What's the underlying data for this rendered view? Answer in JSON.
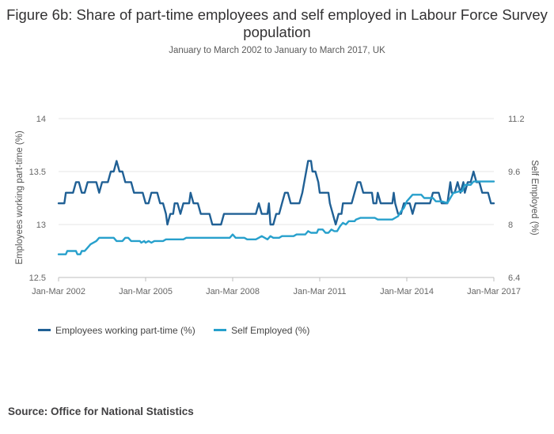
{
  "chart_data": {
    "type": "line",
    "title": "Figure 6b: Share of part-time employees and self employed in Labour Force Survey population",
    "subtitle": "January to March 2002 to January to March 2017, UK",
    "xlabel": "",
    "x_tick_labels": [
      "Jan-Mar 2002",
      "Jan-Mar 2005",
      "Jan-Mar 2008",
      "Jan-Mar 2011",
      "Jan-Mar 2014",
      "Jan-Mar 2017"
    ],
    "x_range": [
      2002.0,
      2017.0
    ],
    "y_left": {
      "label": "Employees working part-time (%)",
      "ticks": [
        "14",
        "13.5",
        "13",
        "12.5"
      ],
      "ylim": [
        12.5,
        14
      ]
    },
    "y_right": {
      "label": "Self Employed (%)",
      "ticks": [
        "11.2",
        "9.6",
        "8",
        "6.4"
      ],
      "ylim": [
        6.4,
        11.2
      ]
    },
    "grid": true,
    "legend_position": "bottom-left",
    "series": [
      {
        "name": "Employees working part-time (%)",
        "axis": "left",
        "color": "#206095",
        "values": [
          [
            2002.0,
            13.2
          ],
          [
            2002.2,
            13.2
          ],
          [
            2002.25,
            13.3
          ],
          [
            2002.5,
            13.3
          ],
          [
            2002.6,
            13.4
          ],
          [
            2002.7,
            13.4
          ],
          [
            2002.8,
            13.3
          ],
          [
            2002.9,
            13.3
          ],
          [
            2003.0,
            13.4
          ],
          [
            2003.3,
            13.4
          ],
          [
            2003.4,
            13.3
          ],
          [
            2003.5,
            13.4
          ],
          [
            2003.7,
            13.4
          ],
          [
            2003.8,
            13.5
          ],
          [
            2003.9,
            13.5
          ],
          [
            2004.0,
            13.6
          ],
          [
            2004.1,
            13.5
          ],
          [
            2004.2,
            13.5
          ],
          [
            2004.3,
            13.4
          ],
          [
            2004.5,
            13.4
          ],
          [
            2004.6,
            13.3
          ],
          [
            2004.9,
            13.3
          ],
          [
            2005.0,
            13.2
          ],
          [
            2005.1,
            13.2
          ],
          [
            2005.2,
            13.3
          ],
          [
            2005.4,
            13.3
          ],
          [
            2005.5,
            13.2
          ],
          [
            2005.6,
            13.2
          ],
          [
            2005.7,
            13.1
          ],
          [
            2005.75,
            13.0
          ],
          [
            2005.85,
            13.1
          ],
          [
            2005.95,
            13.1
          ],
          [
            2006.0,
            13.2
          ],
          [
            2006.1,
            13.2
          ],
          [
            2006.2,
            13.1
          ],
          [
            2006.3,
            13.2
          ],
          [
            2006.5,
            13.2
          ],
          [
            2006.55,
            13.3
          ],
          [
            2006.65,
            13.2
          ],
          [
            2006.8,
            13.2
          ],
          [
            2006.9,
            13.1
          ],
          [
            2007.2,
            13.1
          ],
          [
            2007.3,
            13.0
          ],
          [
            2007.6,
            13.0
          ],
          [
            2007.7,
            13.1
          ],
          [
            2008.8,
            13.1
          ],
          [
            2008.9,
            13.2
          ],
          [
            2009.0,
            13.1
          ],
          [
            2009.2,
            13.1
          ],
          [
            2009.25,
            13.2
          ],
          [
            2009.3,
            13.0
          ],
          [
            2009.4,
            13.0
          ],
          [
            2009.5,
            13.1
          ],
          [
            2009.6,
            13.1
          ],
          [
            2009.7,
            13.2
          ],
          [
            2009.8,
            13.3
          ],
          [
            2009.9,
            13.3
          ],
          [
            2010.0,
            13.2
          ],
          [
            2010.3,
            13.2
          ],
          [
            2010.4,
            13.3
          ],
          [
            2010.6,
            13.6
          ],
          [
            2010.7,
            13.6
          ],
          [
            2010.75,
            13.5
          ],
          [
            2010.85,
            13.5
          ],
          [
            2010.95,
            13.4
          ],
          [
            2011.0,
            13.3
          ],
          [
            2011.3,
            13.3
          ],
          [
            2011.35,
            13.2
          ],
          [
            2011.45,
            13.1
          ],
          [
            2011.55,
            13.0
          ],
          [
            2011.65,
            13.1
          ],
          [
            2011.75,
            13.1
          ],
          [
            2011.8,
            13.2
          ],
          [
            2012.1,
            13.2
          ],
          [
            2012.2,
            13.3
          ],
          [
            2012.3,
            13.4
          ],
          [
            2012.4,
            13.4
          ],
          [
            2012.5,
            13.3
          ],
          [
            2012.8,
            13.3
          ],
          [
            2012.85,
            13.2
          ],
          [
            2012.95,
            13.2
          ],
          [
            2013.0,
            13.3
          ],
          [
            2013.1,
            13.2
          ],
          [
            2013.5,
            13.2
          ],
          [
            2013.55,
            13.3
          ],
          [
            2013.6,
            13.2
          ],
          [
            2013.7,
            13.1
          ],
          [
            2013.8,
            13.1
          ],
          [
            2013.9,
            13.2
          ],
          [
            2014.1,
            13.2
          ],
          [
            2014.2,
            13.1
          ],
          [
            2014.3,
            13.2
          ],
          [
            2014.8,
            13.2
          ],
          [
            2014.9,
            13.3
          ],
          [
            2015.1,
            13.3
          ],
          [
            2015.2,
            13.2
          ],
          [
            2015.4,
            13.2
          ],
          [
            2015.5,
            13.4
          ],
          [
            2015.55,
            13.3
          ],
          [
            2015.65,
            13.3
          ],
          [
            2015.75,
            13.4
          ],
          [
            2015.85,
            13.3
          ],
          [
            2015.95,
            13.4
          ],
          [
            2016.0,
            13.3
          ],
          [
            2016.1,
            13.4
          ],
          [
            2016.2,
            13.4
          ],
          [
            2016.3,
            13.5
          ],
          [
            2016.4,
            13.4
          ],
          [
            2016.5,
            13.4
          ],
          [
            2016.6,
            13.3
          ],
          [
            2016.8,
            13.3
          ],
          [
            2016.9,
            13.2
          ],
          [
            2017.0,
            13.2
          ]
        ]
      },
      {
        "name": "Self Employed (%)",
        "axis": "right",
        "color": "#27A0CC",
        "values": [
          [
            2002.0,
            7.1
          ],
          [
            2002.25,
            7.1
          ],
          [
            2002.3,
            7.2
          ],
          [
            2002.6,
            7.2
          ],
          [
            2002.65,
            7.1
          ],
          [
            2002.75,
            7.1
          ],
          [
            2002.8,
            7.2
          ],
          [
            2002.9,
            7.2
          ],
          [
            2003.0,
            7.3
          ],
          [
            2003.1,
            7.4
          ],
          [
            2003.3,
            7.5
          ],
          [
            2003.4,
            7.6
          ],
          [
            2003.9,
            7.6
          ],
          [
            2004.0,
            7.5
          ],
          [
            2004.2,
            7.5
          ],
          [
            2004.3,
            7.6
          ],
          [
            2004.4,
            7.6
          ],
          [
            2004.5,
            7.5
          ],
          [
            2004.8,
            7.5
          ],
          [
            2004.85,
            7.45
          ],
          [
            2004.95,
            7.5
          ],
          [
            2005.0,
            7.45
          ],
          [
            2005.1,
            7.5
          ],
          [
            2005.2,
            7.45
          ],
          [
            2005.3,
            7.5
          ],
          [
            2005.6,
            7.5
          ],
          [
            2005.7,
            7.55
          ],
          [
            2006.3,
            7.55
          ],
          [
            2006.4,
            7.6
          ],
          [
            2007.9,
            7.6
          ],
          [
            2008.0,
            7.7
          ],
          [
            2008.1,
            7.6
          ],
          [
            2008.4,
            7.6
          ],
          [
            2008.5,
            7.55
          ],
          [
            2008.8,
            7.55
          ],
          [
            2008.9,
            7.6
          ],
          [
            2009.0,
            7.65
          ],
          [
            2009.2,
            7.55
          ],
          [
            2009.3,
            7.65
          ],
          [
            2009.4,
            7.6
          ],
          [
            2009.6,
            7.6
          ],
          [
            2009.7,
            7.65
          ],
          [
            2010.1,
            7.65
          ],
          [
            2010.2,
            7.7
          ],
          [
            2010.5,
            7.7
          ],
          [
            2010.6,
            7.8
          ],
          [
            2010.7,
            7.75
          ],
          [
            2010.9,
            7.75
          ],
          [
            2010.95,
            7.85
          ],
          [
            2011.1,
            7.85
          ],
          [
            2011.2,
            7.75
          ],
          [
            2011.3,
            7.75
          ],
          [
            2011.4,
            7.85
          ],
          [
            2011.5,
            7.8
          ],
          [
            2011.6,
            7.8
          ],
          [
            2011.7,
            7.95
          ],
          [
            2011.8,
            8.05
          ],
          [
            2011.9,
            8.0
          ],
          [
            2012.0,
            8.1
          ],
          [
            2012.2,
            8.1
          ],
          [
            2012.25,
            8.15
          ],
          [
            2012.4,
            8.2
          ],
          [
            2012.9,
            8.2
          ],
          [
            2013.0,
            8.15
          ],
          [
            2013.5,
            8.15
          ],
          [
            2013.6,
            8.2
          ],
          [
            2013.7,
            8.25
          ],
          [
            2013.8,
            8.4
          ],
          [
            2013.9,
            8.5
          ],
          [
            2014.0,
            8.7
          ],
          [
            2014.2,
            8.9
          ],
          [
            2014.5,
            8.9
          ],
          [
            2014.6,
            8.8
          ],
          [
            2014.9,
            8.8
          ],
          [
            2015.0,
            8.7
          ],
          [
            2015.2,
            8.7
          ],
          [
            2015.4,
            8.65
          ],
          [
            2015.5,
            8.8
          ],
          [
            2015.6,
            8.95
          ],
          [
            2015.8,
            9.0
          ],
          [
            2015.9,
            9.0
          ],
          [
            2016.0,
            9.2
          ],
          [
            2016.2,
            9.2
          ],
          [
            2016.3,
            9.3
          ],
          [
            2017.0,
            9.3
          ]
        ]
      }
    ]
  },
  "source": "Source: Office for National Statistics"
}
